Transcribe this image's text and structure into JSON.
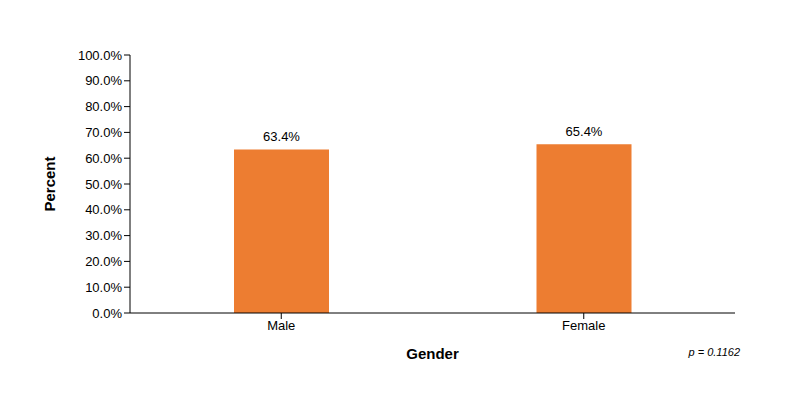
{
  "chart_data": {
    "type": "bar",
    "x_label": "Gender",
    "y_label": "Percent",
    "annotation": "p = 0.1162",
    "categories": [
      "Male",
      "Female"
    ],
    "values": [
      63.4,
      65.4
    ],
    "value_labels": [
      "63.4%",
      "65.4%"
    ],
    "data_labels": true,
    "color": "#ed7d31",
    "ylim": [
      0,
      100
    ],
    "yticks": [
      {
        "value": 0,
        "label": "0.0%"
      },
      {
        "value": 10,
        "label": "10.0%"
      },
      {
        "value": 20,
        "label": "20.0%"
      },
      {
        "value": 30,
        "label": "30.0%"
      },
      {
        "value": 40,
        "label": "40.0%"
      },
      {
        "value": 50,
        "label": "50.0%"
      },
      {
        "value": 60,
        "label": "60.0%"
      },
      {
        "value": 70,
        "label": "70.0%"
      },
      {
        "value": 80,
        "label": "80.0%"
      },
      {
        "value": 90,
        "label": "90.0%"
      },
      {
        "value": 100,
        "label": "100.0%"
      }
    ],
    "grid": false
  }
}
